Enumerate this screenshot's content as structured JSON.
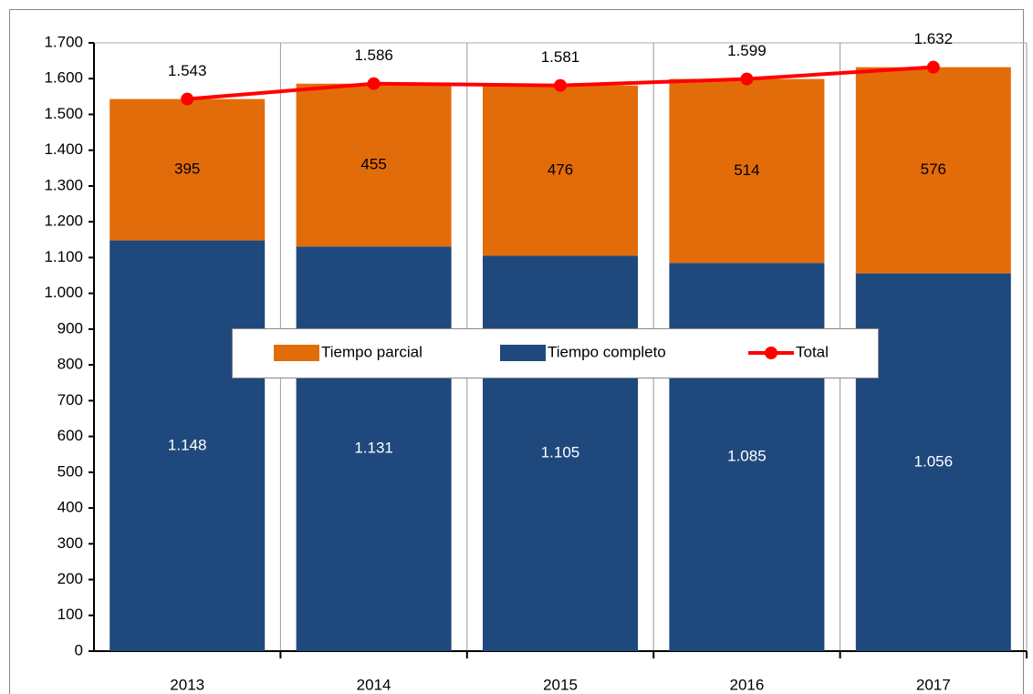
{
  "chart_data": {
    "type": "bar",
    "categories": [
      "2013",
      "2014",
      "2015",
      "2016",
      "2017"
    ],
    "series": [
      {
        "name": "Tiempo parcial",
        "type": "bar",
        "color": "#e36c0a",
        "values": [
          395,
          455,
          476,
          514,
          576
        ]
      },
      {
        "name": "Tiempo completo",
        "type": "bar",
        "color": "#1f497d",
        "values": [
          1148,
          1131,
          1105,
          1085,
          1056
        ],
        "value_labels": [
          "1.148",
          "1.131",
          "1.105",
          "1.085",
          "1.056"
        ]
      },
      {
        "name": "Total",
        "type": "line",
        "color": "#ff0000",
        "values": [
          1543,
          1586,
          1581,
          1599,
          1632
        ],
        "value_labels": [
          "1.543",
          "1.586",
          "1.581",
          "1.599",
          "1.632"
        ]
      }
    ],
    "stacked": true,
    "ylim": [
      0,
      1700
    ],
    "yticks": [
      0,
      100,
      200,
      300,
      400,
      500,
      600,
      700,
      800,
      900,
      {
        "value": 1000,
        "label": "1.000"
      },
      {
        "value": 1100,
        "label": "1.100"
      },
      {
        "value": 1200,
        "label": "1.200"
      },
      {
        "value": 1300,
        "label": "1.300"
      },
      {
        "value": 1400,
        "label": "1.400"
      },
      {
        "value": 1500,
        "label": "1.500"
      },
      {
        "value": 1600,
        "label": "1.600"
      },
      {
        "value": 1700,
        "label": "1.700"
      }
    ],
    "legend": "center"
  }
}
